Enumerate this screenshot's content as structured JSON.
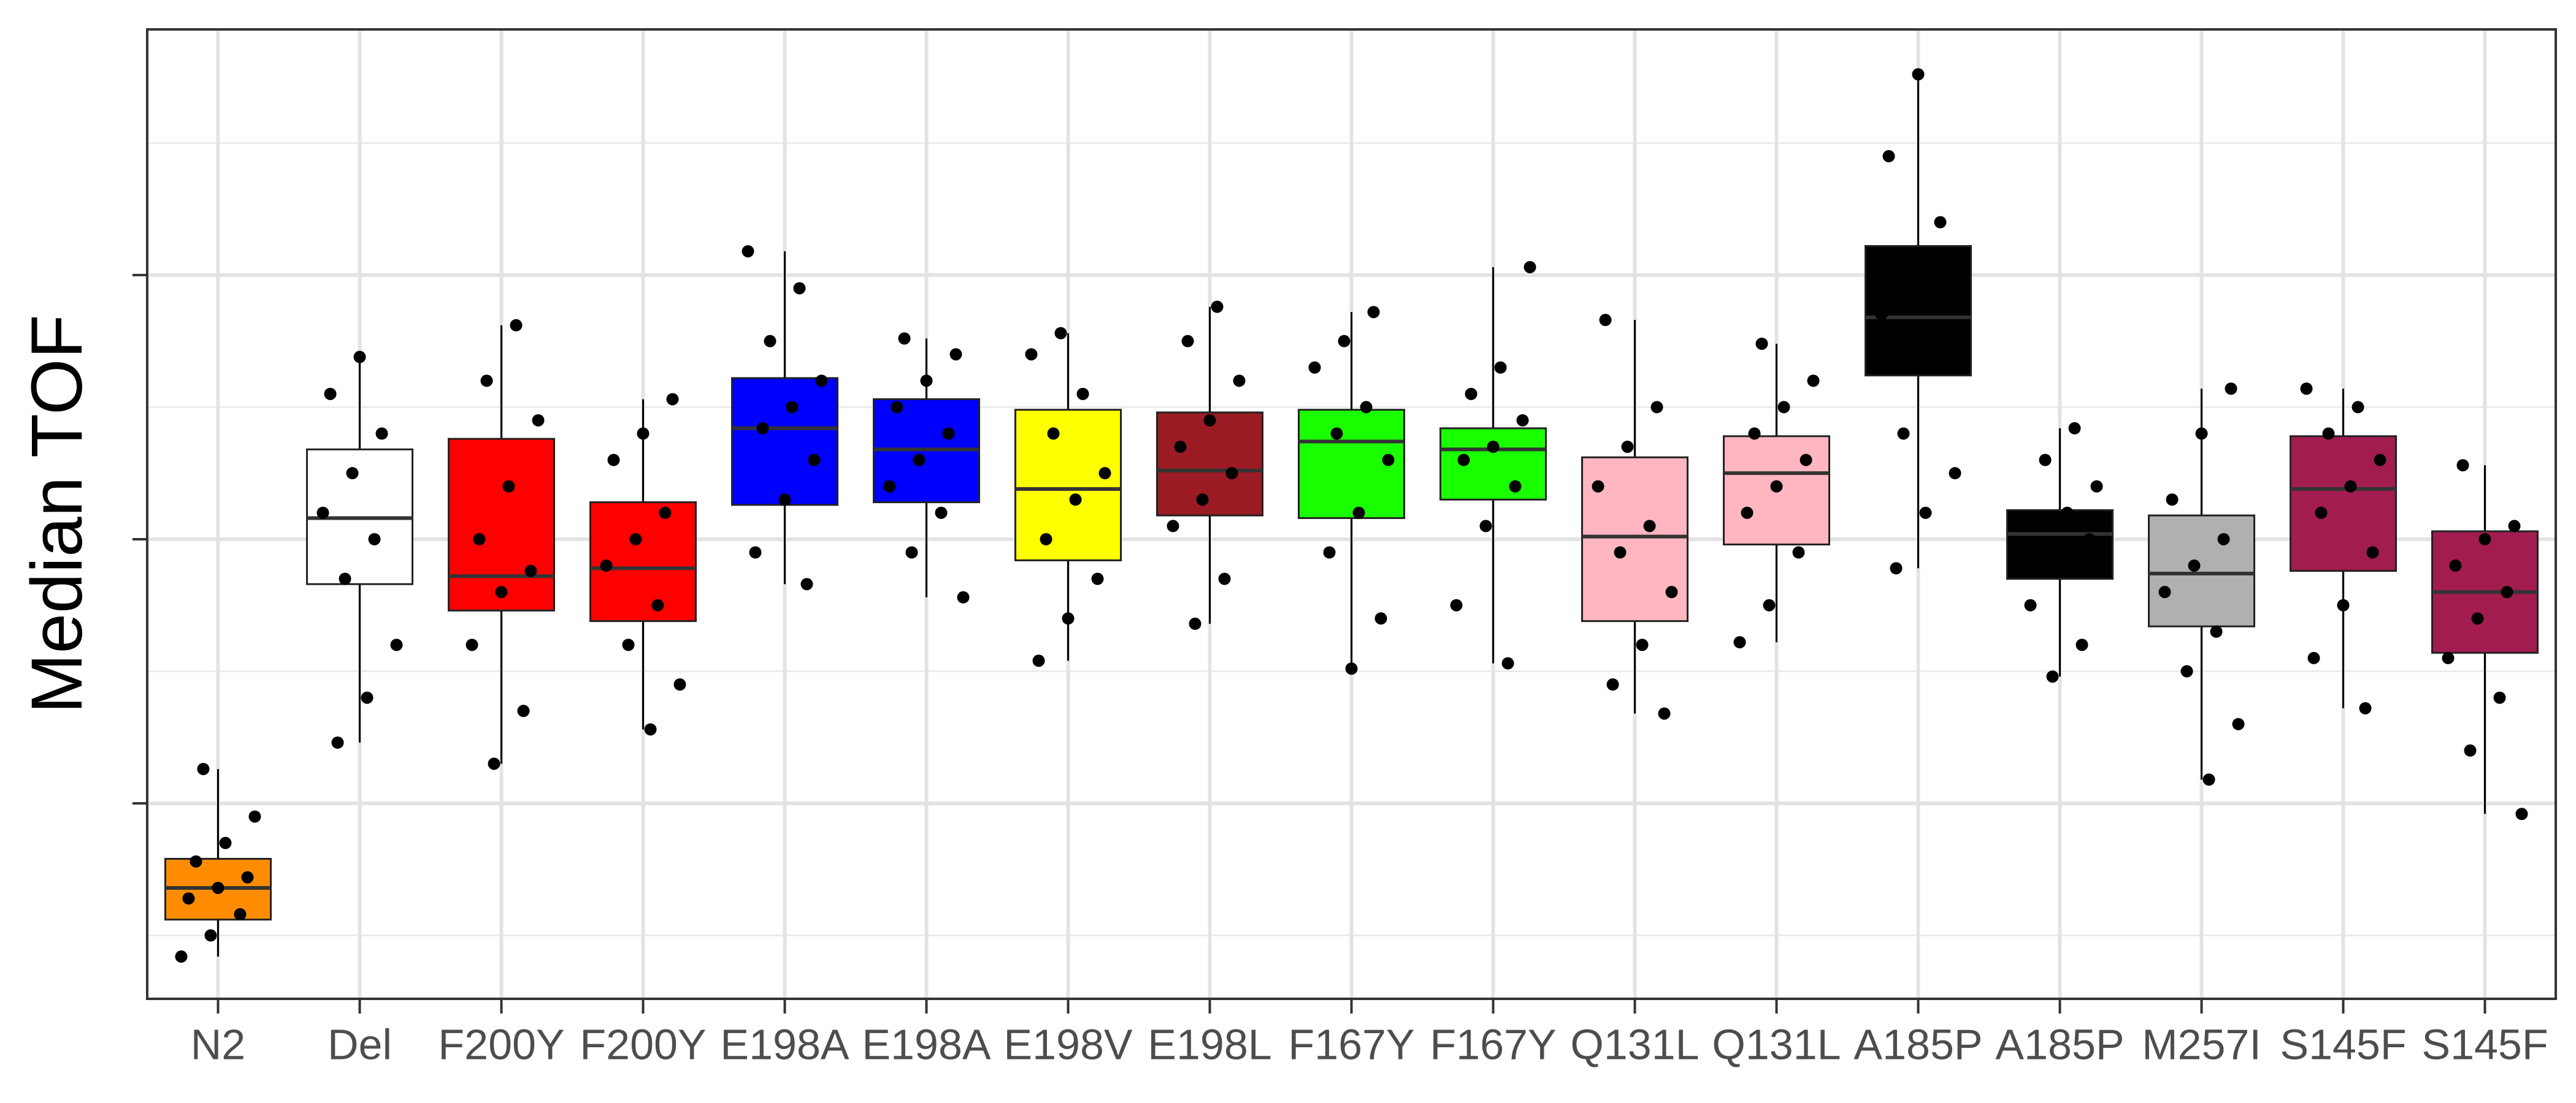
{
  "chart_data": {
    "type": "box",
    "y_label": "Median TOF",
    "categories": [
      "N2",
      "Del",
      "F200Y",
      "F200Y",
      "E198A",
      "E198A",
      "E198V",
      "E198L",
      "F167Y",
      "F167Y",
      "Q131L",
      "Q131L",
      "A185P",
      "A185P",
      "M257I",
      "S145F",
      "S145F"
    ],
    "colors": [
      "#ff8c00",
      "#ffffff",
      "#ff0000",
      "#ff0000",
      "#0000ff",
      "#0000ff",
      "#ffff00",
      "#9b1b24",
      "#1aff00",
      "#1aff00",
      "#ffb6c1",
      "#ffb6c1",
      "#000000",
      "#000000",
      "#b0b0b0",
      "#a31c4f",
      "#a31c4f"
    ],
    "whisker_low": [
      0.42,
      1.23,
      1.15,
      1.28,
      1.83,
      1.78,
      1.54,
      1.68,
      1.51,
      1.53,
      1.34,
      1.61,
      1.89,
      1.48,
      1.09,
      1.36,
      0.96
    ],
    "q1": [
      0.56,
      1.83,
      1.73,
      1.69,
      2.13,
      2.14,
      1.92,
      2.09,
      2.08,
      2.15,
      1.69,
      1.98,
      2.62,
      1.85,
      1.67,
      1.88,
      1.57
    ],
    "median": [
      0.68,
      2.08,
      1.86,
      1.89,
      2.42,
      2.34,
      2.19,
      2.26,
      2.37,
      2.34,
      2.01,
      2.25,
      2.84,
      2.02,
      1.87,
      2.19,
      1.8
    ],
    "q3": [
      0.79,
      2.34,
      2.38,
      2.14,
      2.61,
      2.53,
      2.49,
      2.48,
      2.49,
      2.42,
      2.31,
      2.39,
      3.11,
      2.11,
      2.09,
      2.39,
      2.03
    ],
    "whisker_high": [
      1.13,
      2.69,
      2.81,
      2.53,
      3.09,
      2.76,
      2.78,
      2.88,
      2.86,
      3.03,
      2.83,
      2.74,
      3.76,
      2.42,
      2.57,
      2.57,
      2.28
    ],
    "points": [
      [
        0.42,
        0.5,
        0.58,
        0.64,
        0.68,
        0.72,
        0.78,
        0.85,
        0.95,
        1.13
      ],
      [
        1.23,
        1.4,
        1.6,
        1.85,
        2.0,
        2.1,
        2.25,
        2.4,
        2.55,
        2.69
      ],
      [
        1.15,
        1.35,
        1.6,
        1.8,
        1.88,
        2.0,
        2.2,
        2.45,
        2.6,
        2.81
      ],
      [
        1.28,
        1.45,
        1.6,
        1.75,
        1.9,
        2.0,
        2.1,
        2.3,
        2.4,
        2.53
      ],
      [
        1.83,
        1.95,
        2.15,
        2.3,
        2.42,
        2.5,
        2.6,
        2.75,
        2.95,
        3.09
      ],
      [
        1.78,
        1.95,
        2.1,
        2.2,
        2.3,
        2.4,
        2.5,
        2.6,
        2.7,
        2.76
      ],
      [
        1.54,
        1.7,
        1.85,
        2.0,
        2.15,
        2.25,
        2.4,
        2.55,
        2.7,
        2.78
      ],
      [
        1.68,
        1.85,
        2.05,
        2.15,
        2.25,
        2.35,
        2.45,
        2.6,
        2.75,
        2.88
      ],
      [
        1.51,
        1.7,
        1.95,
        2.1,
        2.3,
        2.4,
        2.5,
        2.65,
        2.75,
        2.86
      ],
      [
        1.53,
        1.75,
        2.05,
        2.2,
        2.3,
        2.35,
        2.45,
        2.55,
        2.65,
        3.03
      ],
      [
        1.34,
        1.45,
        1.6,
        1.8,
        1.95,
        2.05,
        2.2,
        2.35,
        2.5,
        2.83
      ],
      [
        1.61,
        1.75,
        1.95,
        2.1,
        2.2,
        2.3,
        2.4,
        2.5,
        2.6,
        2.74
      ],
      [
        1.89,
        2.1,
        2.25,
        2.4,
        2.7,
        2.85,
        3.0,
        3.2,
        3.45,
        3.76
      ],
      [
        1.48,
        1.6,
        1.75,
        1.9,
        2.0,
        2.05,
        2.1,
        2.2,
        2.3,
        2.42
      ],
      [
        1.09,
        1.3,
        1.5,
        1.65,
        1.8,
        1.9,
        2.0,
        2.15,
        2.4,
        2.57
      ],
      [
        1.36,
        1.55,
        1.75,
        1.95,
        2.1,
        2.2,
        2.3,
        2.4,
        2.5,
        2.57
      ],
      [
        0.96,
        1.2,
        1.4,
        1.55,
        1.7,
        1.8,
        1.9,
        2.0,
        2.05,
        2.28
      ]
    ],
    "ylim": [
      0.26,
      3.93
    ],
    "yticks": [
      1,
      2,
      3
    ],
    "yminorticks": [
      0.5,
      1.5,
      2.5,
      3.5
    ],
    "grid": true
  }
}
